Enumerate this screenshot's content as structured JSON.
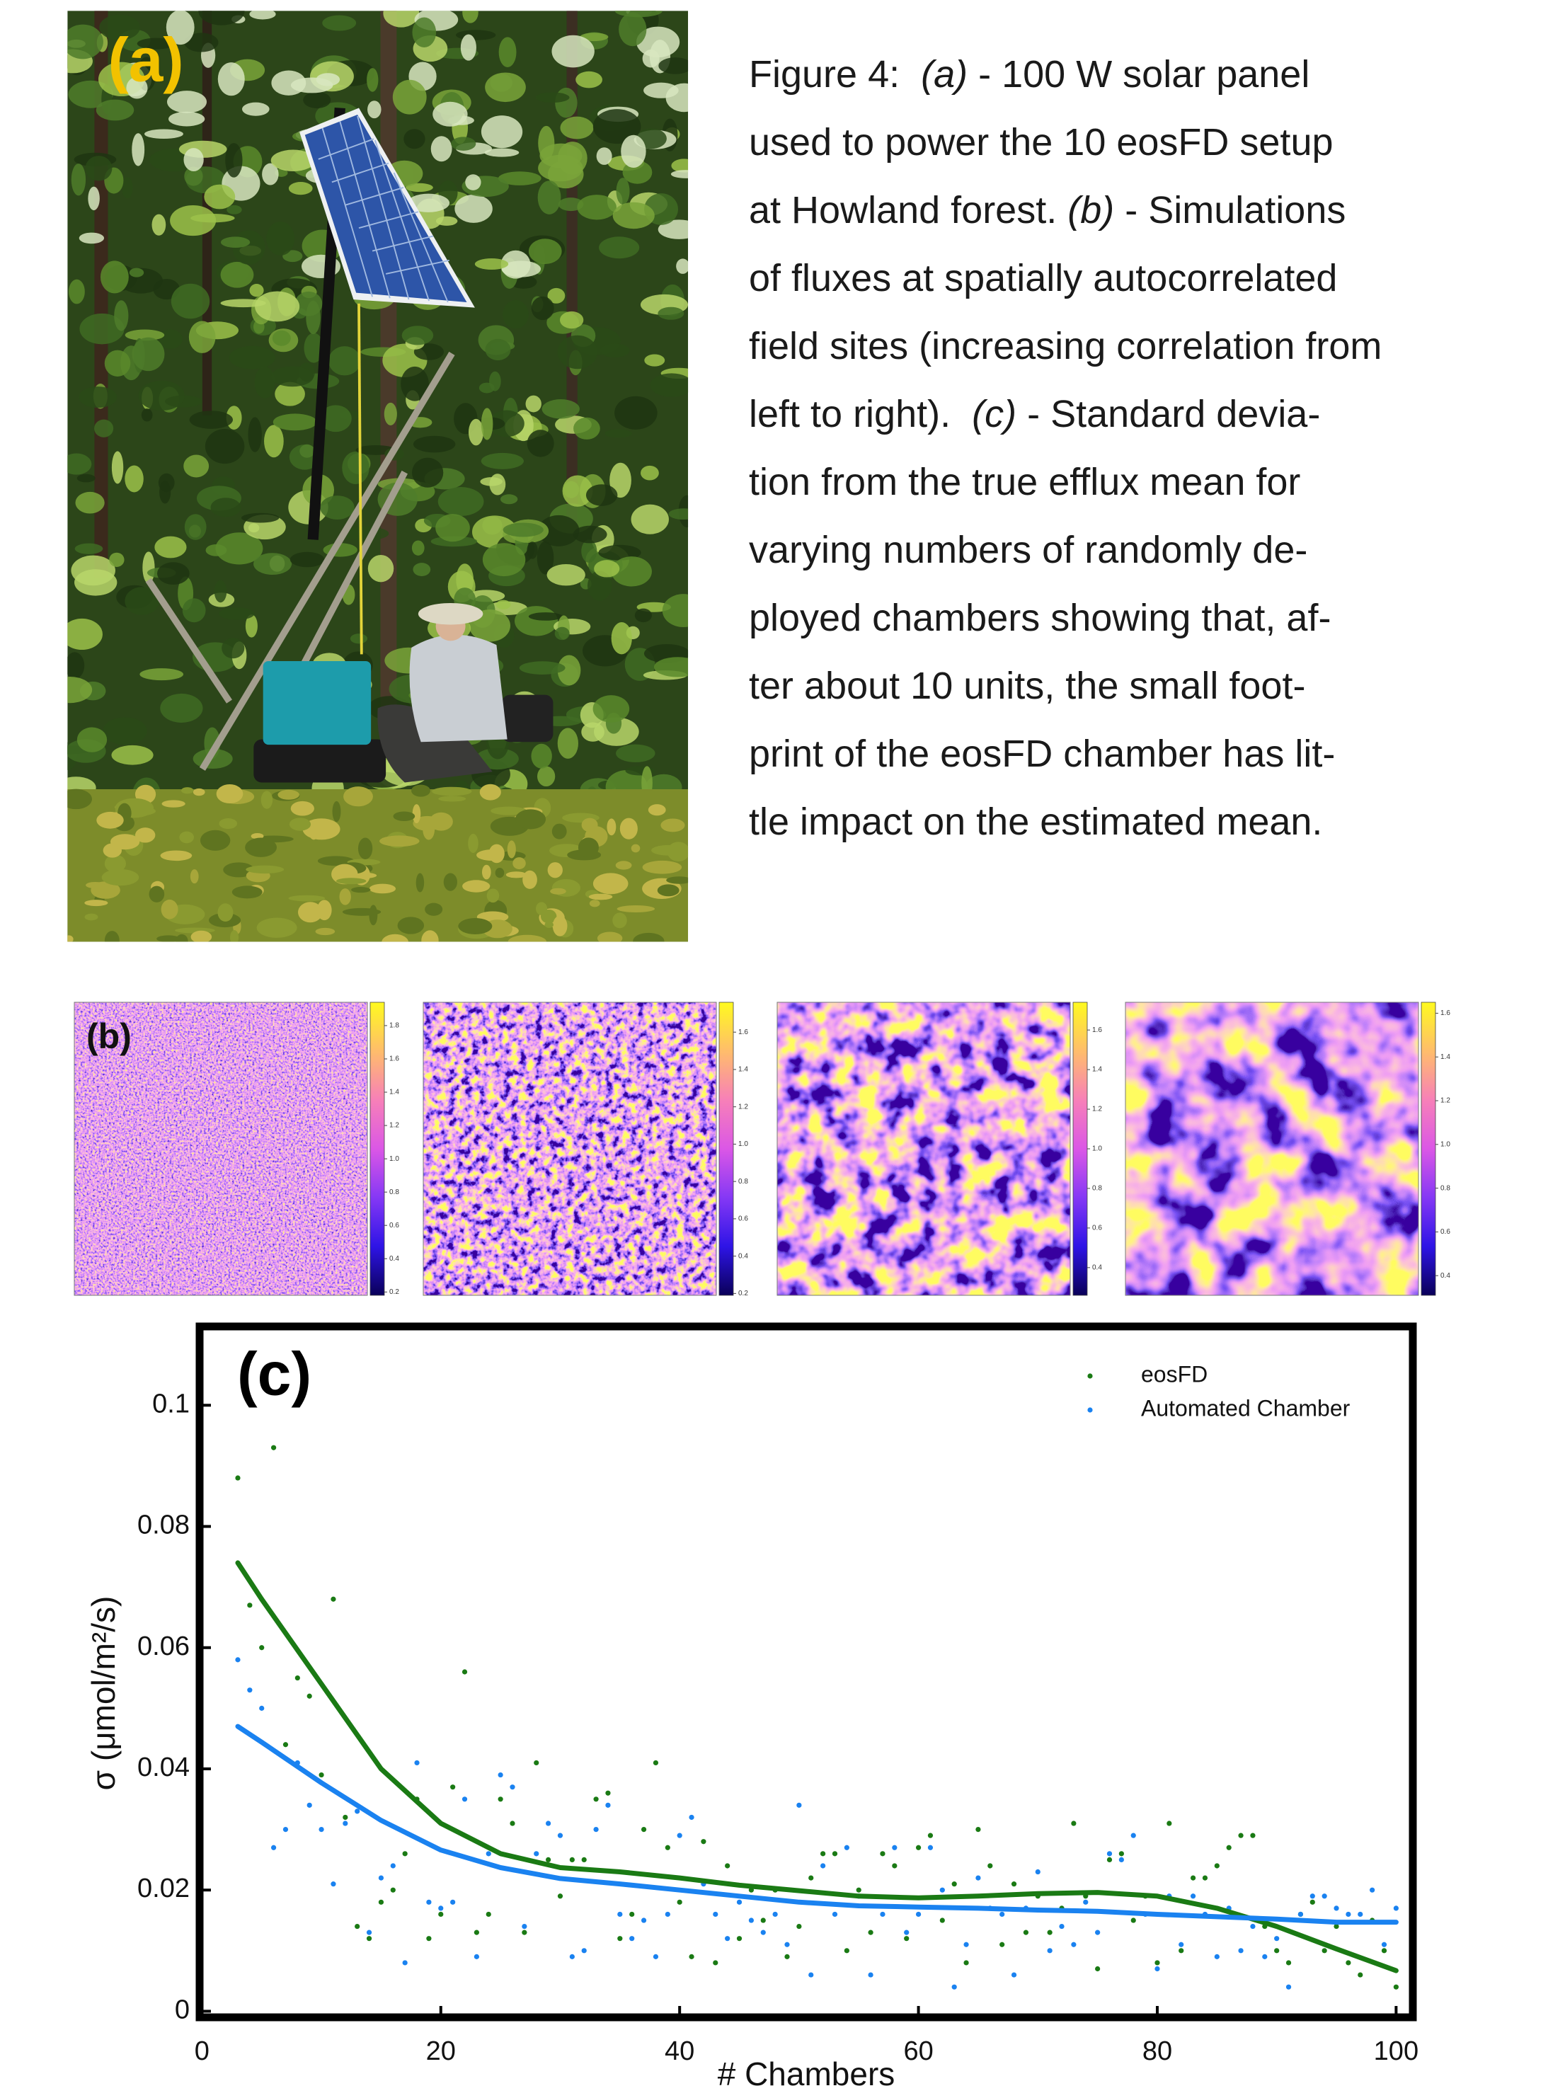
{
  "panel_a": {
    "label": "(a)"
  },
  "caption": {
    "lines": [
      [
        "Figure 4:  ",
        "(a)",
        " - 100 W solar panel"
      ],
      [
        "used to power the 10 eosFD setup"
      ],
      [
        "at Howland forest. ",
        "(b)",
        " - Simulations"
      ],
      [
        "of fluxes at spatially autocorrelated"
      ],
      [
        "field sites (increasing correlation from"
      ],
      [
        "left to right).  ",
        "(c)",
        " - Standard devia-"
      ],
      [
        "tion from the true efflux mean for"
      ],
      [
        "varying numbers of randomly de-"
      ],
      [
        "ployed chambers showing that, af-"
      ],
      [
        "ter about 10 units, the small foot-"
      ],
      [
        "print of the eosFD chamber has lit-"
      ],
      [
        "tle impact on the estimated mean."
      ]
    ]
  },
  "panel_b": {
    "label": "(b)",
    "colorbars": [
      {
        "lim": [
          0.18,
          1.94
        ],
        "ticks": [
          1.8,
          1.6,
          1.4,
          1.2,
          {
            "value": 1,
            "label": "1.0"
          },
          0.8,
          0.6,
          0.4,
          0.2
        ]
      },
      {
        "lim": [
          0.19,
          1.76
        ],
        "ticks": [
          1.6,
          1.4,
          1.2,
          {
            "value": 1,
            "label": "1.0"
          },
          0.8,
          0.6,
          0.4,
          0.2
        ]
      },
      {
        "lim": [
          0.26,
          1.74
        ],
        "ticks": [
          1.6,
          1.4,
          1.2,
          {
            "value": 1,
            "label": "1.0"
          },
          0.8,
          0.6,
          0.4
        ]
      },
      {
        "lim": [
          0.31,
          1.65
        ],
        "ticks": [
          1.6,
          1.4,
          1.2,
          {
            "value": 1,
            "label": "1.0"
          },
          0.8,
          0.6,
          0.4
        ]
      }
    ]
  },
  "chart_data": {
    "type": "scatter",
    "panel_label": "(c)",
    "xlabel": "# Chambers",
    "ylabel": "σ (μmol/m²/s)",
    "xlim": [
      -0.2,
      101.4
    ],
    "ylim": [
      -0.001,
      0.113
    ],
    "xticks": [
      0,
      20,
      40,
      60,
      80,
      100
    ],
    "yticks": [
      0,
      0.02,
      0.04,
      0.06,
      0.08,
      0.1
    ],
    "legend": "upper right",
    "x": [
      3,
      4,
      5,
      6,
      7,
      8,
      9,
      10,
      11,
      12,
      13,
      14,
      15,
      16,
      17,
      18,
      19,
      20,
      21,
      22,
      23,
      24,
      25,
      26,
      27,
      28,
      29,
      30,
      31,
      32,
      33,
      34,
      35,
      36,
      37,
      38,
      39,
      40,
      41,
      42,
      43,
      44,
      45,
      46,
      47,
      48,
      49,
      50,
      51,
      52,
      53,
      54,
      55,
      56,
      57,
      58,
      59,
      60,
      61,
      62,
      63,
      64,
      65,
      66,
      67,
      68,
      69,
      70,
      71,
      72,
      73,
      74,
      75,
      76,
      77,
      78,
      79,
      80,
      81,
      82,
      83,
      84,
      85,
      86,
      87,
      88,
      89,
      90,
      91,
      92,
      93,
      94,
      95,
      96,
      97,
      98,
      99,
      100
    ],
    "fit_x": [
      3,
      5,
      10,
      15,
      20,
      25,
      30,
      35,
      40,
      45,
      50,
      55,
      60,
      65,
      70,
      75,
      80,
      85,
      90,
      95,
      100
    ],
    "series": [
      {
        "name": "eosFD",
        "color": "#1a7a14",
        "values": [
          0.088,
          0.067,
          0.06,
          0.093,
          0.044,
          0.055,
          0.052,
          0.039,
          0.068,
          0.032,
          0.014,
          0.012,
          0.018,
          0.02,
          0.026,
          0.035,
          0.012,
          0.016,
          0.037,
          0.056,
          0.013,
          0.016,
          0.035,
          0.031,
          0.013,
          0.041,
          0.025,
          0.019,
          0.025,
          0.025,
          0.035,
          0.036,
          0.012,
          0.016,
          0.03,
          0.041,
          0.027,
          0.018,
          0.009,
          0.028,
          0.008,
          0.024,
          0.012,
          0.02,
          0.015,
          0.02,
          0.009,
          0.014,
          0.022,
          0.026,
          0.026,
          0.01,
          0.02,
          0.013,
          0.026,
          0.024,
          0.012,
          0.027,
          0.029,
          0.015,
          0.021,
          0.008,
          0.03,
          0.024,
          0.011,
          0.021,
          0.013,
          0.019,
          0.013,
          0.017,
          0.031,
          0.019,
          0.007,
          0.025,
          0.026,
          0.015,
          0.019,
          0.008,
          0.031,
          0.01,
          0.022,
          0.022,
          0.024,
          0.027,
          0.029,
          0.029,
          0.014,
          0.01,
          0.008,
          0.016,
          0.018,
          0.01,
          0.014,
          0.008,
          0.006,
          0.015,
          0.01,
          0.004
        ],
        "fit": [
          0.074,
          0.068,
          0.054,
          0.04,
          0.031,
          0.026,
          0.0237,
          0.023,
          0.022,
          0.0208,
          0.0199,
          0.019,
          0.0187,
          0.019,
          0.0194,
          0.0196,
          0.019,
          0.017,
          0.014,
          0.0103,
          0.0067
        ]
      },
      {
        "name": "Automated Chamber",
        "color": "#1a82f0",
        "values": [
          0.058,
          0.053,
          0.05,
          0.027,
          0.03,
          0.041,
          0.034,
          0.03,
          0.021,
          0.031,
          0.033,
          0.013,
          0.022,
          0.024,
          0.008,
          0.041,
          0.018,
          0.017,
          0.018,
          0.035,
          0.009,
          0.026,
          0.039,
          0.037,
          0.014,
          0.026,
          0.031,
          0.029,
          0.009,
          0.01,
          0.03,
          0.034,
          0.016,
          0.012,
          0.015,
          0.009,
          0.016,
          0.029,
          0.032,
          0.021,
          0.016,
          0.012,
          0.018,
          0.015,
          0.013,
          0.016,
          0.011,
          0.034,
          0.006,
          0.024,
          0.016,
          0.027,
          0.019,
          0.006,
          0.016,
          0.027,
          0.013,
          0.016,
          0.027,
          0.02,
          0.004,
          0.011,
          0.022,
          0.017,
          0.016,
          0.006,
          0.017,
          0.023,
          0.01,
          0.014,
          0.011,
          0.018,
          0.013,
          0.026,
          0.025,
          0.029,
          0.016,
          0.007,
          0.019,
          0.011,
          0.019,
          0.016,
          0.009,
          0.017,
          0.01,
          0.014,
          0.009,
          0.012,
          0.004,
          0.016,
          0.019,
          0.019,
          0.017,
          0.016,
          0.016,
          0.02,
          0.011,
          0.017
        ],
        "fit": [
          0.047,
          0.0444,
          0.0377,
          0.0315,
          0.0266,
          0.0237,
          0.0219,
          0.021,
          0.02,
          0.019,
          0.018,
          0.0174,
          0.0172,
          0.017,
          0.0167,
          0.0165,
          0.016,
          0.0156,
          0.0152,
          0.0147,
          0.0147
        ]
      }
    ]
  }
}
